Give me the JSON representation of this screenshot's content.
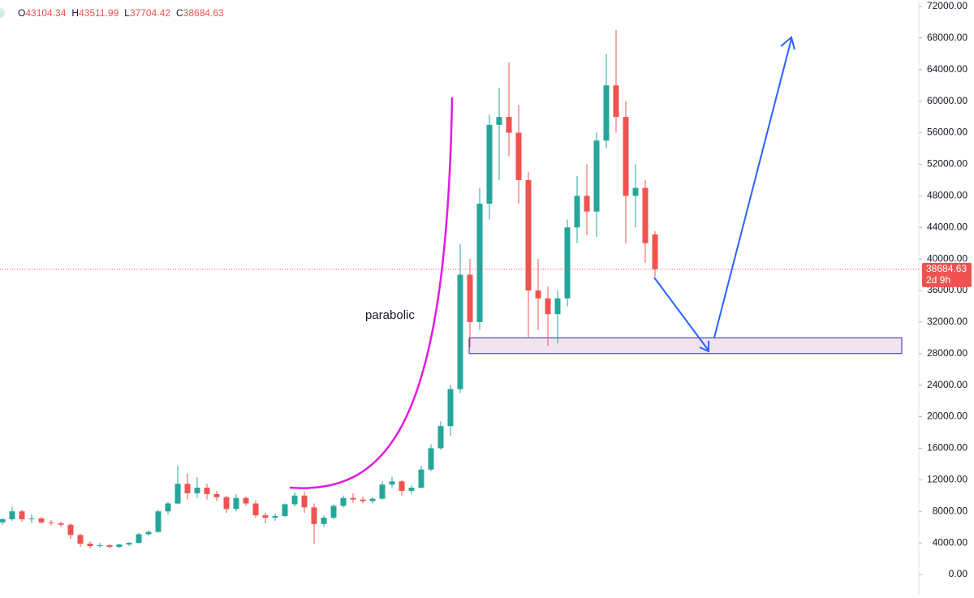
{
  "chart_data": {
    "type": "candlestick",
    "ohlc_labels": [
      "O",
      "H",
      "L",
      "C"
    ],
    "series": {
      "open": [
        6600,
        7000,
        8000,
        7000,
        7100,
        6600,
        6500,
        6300,
        5000,
        3900,
        3600,
        3700,
        3500,
        3800,
        4000,
        5100,
        5400,
        8000,
        9000,
        11500,
        10300,
        11000,
        10200,
        9800,
        8300,
        9700,
        9000,
        7500,
        7200,
        7400,
        8900,
        10000,
        8500,
        6400,
        7200,
        8700,
        9700,
        9500,
        9300,
        9600,
        11400,
        11800,
        10600,
        11000,
        13300,
        16000,
        18800,
        23500,
        38000,
        32000,
        47000,
        57000,
        58000,
        56000,
        50000,
        36000,
        35000,
        33000,
        35000,
        44000,
        48000,
        46000,
        55000,
        62000,
        58000,
        48000,
        49000,
        43104.34
      ],
      "high": [
        7200,
        8600,
        8200,
        7600,
        7300,
        6900,
        6700,
        6500,
        5200,
        4200,
        4000,
        3900,
        3900,
        4100,
        5300,
        5600,
        8200,
        9200,
        13800,
        12800,
        12300,
        11500,
        10600,
        10000,
        10200,
        9900,
        9400,
        7800,
        7700,
        9000,
        10400,
        10500,
        9000,
        7500,
        8900,
        10000,
        10300,
        9900,
        9800,
        11800,
        12400,
        12000,
        11300,
        13800,
        16500,
        19400,
        24000,
        41900,
        40000,
        49000,
        58300,
        61700,
        64900,
        59500,
        51000,
        40000,
        36500,
        36000,
        45000,
        50500,
        52000,
        56000,
        66000,
        69000,
        60000,
        52000,
        50000,
        43511.99
      ],
      "low": [
        6300,
        6800,
        6700,
        6500,
        6400,
        6200,
        6000,
        4500,
        3500,
        3300,
        3400,
        3300,
        3400,
        3600,
        3900,
        4900,
        5300,
        7600,
        8900,
        9500,
        9700,
        9500,
        9300,
        7800,
        8000,
        8700,
        7200,
        6500,
        6800,
        7300,
        8600,
        7800,
        3900,
        6000,
        7000,
        8500,
        9100,
        9000,
        9000,
        9500,
        11000,
        10000,
        10200,
        10900,
        13100,
        15800,
        17600,
        23000,
        28800,
        31000,
        45000,
        50000,
        53000,
        47000,
        30000,
        31000,
        29000,
        29300,
        34000,
        42000,
        43000,
        42800,
        54000,
        56000,
        42000,
        44000,
        39500,
        37704.42
      ],
      "close": [
        7000,
        8000,
        7000,
        7100,
        6600,
        6500,
        6300,
        5000,
        3900,
        3600,
        3700,
        3500,
        3800,
        4000,
        5100,
        5400,
        8000,
        9000,
        11500,
        10300,
        11000,
        10200,
        9800,
        8300,
        9700,
        9000,
        7500,
        7200,
        7400,
        8900,
        10000,
        8500,
        6400,
        7200,
        8700,
        9700,
        9500,
        9300,
        9600,
        11400,
        11800,
        10600,
        11000,
        13300,
        16000,
        18800,
        23500,
        38000,
        32000,
        47000,
        57000,
        58000,
        56000,
        50000,
        36000,
        35000,
        33000,
        35000,
        44000,
        48000,
        46000,
        55000,
        62000,
        58000,
        48000,
        49000,
        42000,
        38684.63
      ],
      "up_color": "#26a69a",
      "down_color": "#ef5350"
    },
    "countdown": "2d 9h",
    "annotation": "parabolic",
    "zone": [
      28000,
      30000
    ],
    "ylim": [
      0,
      72000
    ],
    "yticks": [
      {
        "value": 0,
        "label": "0.00"
      },
      {
        "value": 4000,
        "label": "4000.00"
      },
      {
        "value": 8000,
        "label": "8000.00"
      },
      {
        "value": 12000,
        "label": "12000.00"
      },
      {
        "value": 16000,
        "label": "16000.00"
      },
      {
        "value": 20000,
        "label": "20000.00"
      },
      {
        "value": 24000,
        "label": "24000.00"
      },
      {
        "value": 28000,
        "label": "28000.00"
      },
      {
        "value": 32000,
        "label": "32000.00"
      },
      {
        "value": 36000,
        "label": "36000.00"
      },
      {
        "value": 40000,
        "label": "40000.00"
      },
      {
        "value": 44000,
        "label": "44000.00"
      },
      {
        "value": 48000,
        "label": "48000.00"
      },
      {
        "value": 52000,
        "label": "52000.00"
      },
      {
        "value": 56000,
        "label": "56000.00"
      },
      {
        "value": 60000,
        "label": "60000.00"
      },
      {
        "value": 64000,
        "label": "64000.00"
      },
      {
        "value": 68000,
        "label": "68000.00"
      },
      {
        "value": 72000,
        "label": "72000.00"
      }
    ]
  }
}
